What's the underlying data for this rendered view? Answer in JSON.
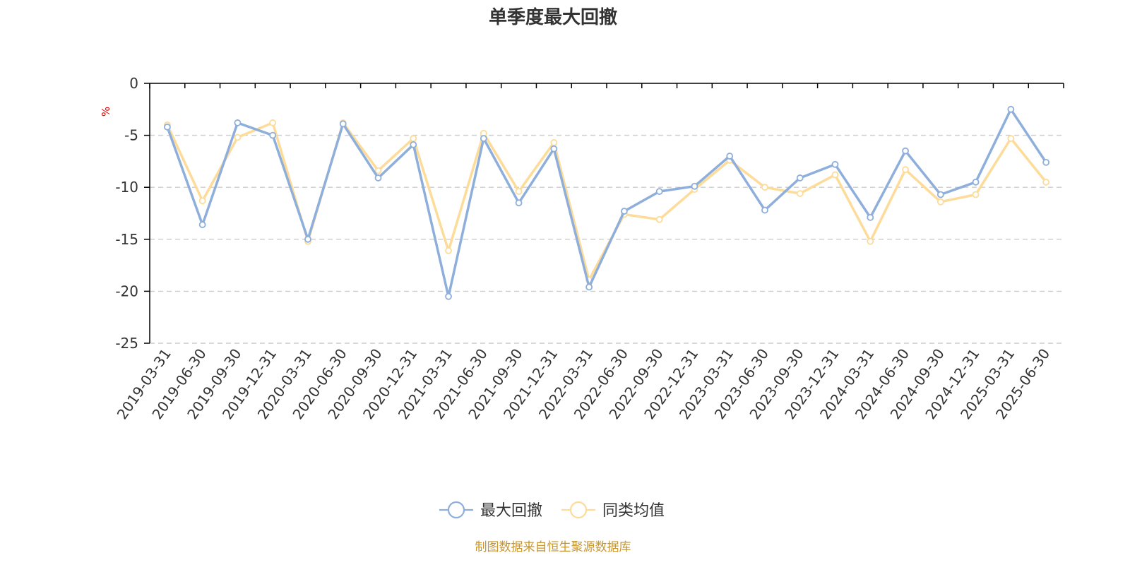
{
  "chart_data": {
    "type": "line",
    "title": "单季度最大回撤",
    "ylabel": "%",
    "xlabel": "",
    "ylim": [
      -25,
      0
    ],
    "yticks": [
      0,
      -5,
      -10,
      -15,
      -20,
      -25
    ],
    "grid": true,
    "legend_position": "bottom",
    "categories": [
      "2019-03-31",
      "2019-06-30",
      "2019-09-30",
      "2019-12-31",
      "2020-03-31",
      "2020-06-30",
      "2020-09-30",
      "2020-12-31",
      "2021-03-31",
      "2021-06-30",
      "2021-09-30",
      "2021-12-31",
      "2022-03-31",
      "2022-06-30",
      "2022-09-30",
      "2022-12-31",
      "2023-03-31",
      "2023-06-30",
      "2023-09-30",
      "2023-12-31",
      "2024-03-31",
      "2024-06-30",
      "2024-09-30",
      "2024-12-31",
      "2025-03-31",
      "2025-06-30"
    ],
    "series": [
      {
        "name": "最大回撤",
        "color": "#8eaedb",
        "values": [
          -4.2,
          -13.6,
          -3.8,
          -5.0,
          -15.0,
          -3.9,
          -9.1,
          -5.9,
          -20.5,
          -5.3,
          -11.5,
          -6.3,
          -19.6,
          -12.3,
          -10.4,
          -9.9,
          -7.0,
          -12.2,
          -9.1,
          -7.8,
          -12.9,
          -6.5,
          -10.7,
          -9.5,
          -2.5,
          -7.6
        ]
      },
      {
        "name": "同类均值",
        "color": "#fddb98",
        "values": [
          -4.0,
          -11.3,
          -5.2,
          -3.8,
          -15.2,
          -3.8,
          -8.4,
          -5.3,
          -16.1,
          -4.8,
          -10.4,
          -5.7,
          -18.9,
          -12.6,
          -13.1,
          -10.2,
          -7.4,
          -10.0,
          -10.6,
          -8.8,
          -15.2,
          -8.3,
          -11.4,
          -10.7,
          -5.3,
          -9.5
        ]
      }
    ]
  },
  "footer": {
    "source_text": "制图数据来自恒生聚源数据库",
    "source_color": "#c8962c"
  },
  "colors": {
    "axis": "#000000",
    "text": "#333333",
    "unit": "#e60000"
  }
}
